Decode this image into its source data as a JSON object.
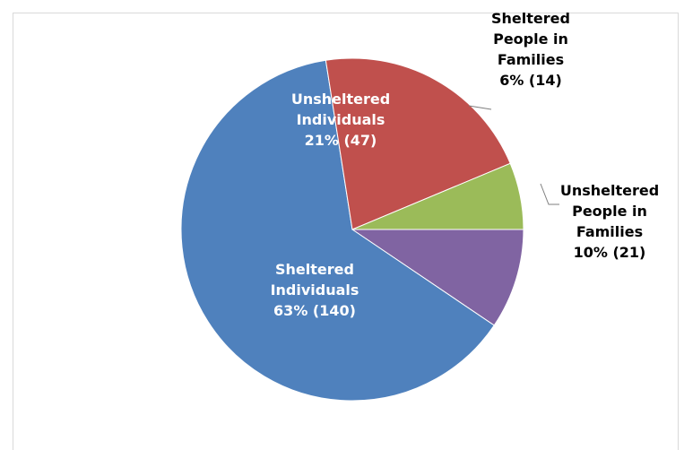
{
  "chart_data": {
    "type": "pie",
    "slices": [
      {
        "label_lines": [
          "Unsheltered",
          "People in",
          "Families"
        ],
        "value_label": "10% (21)",
        "percent": 10,
        "count": 21,
        "color": "#8064A2",
        "label_color": "#000000"
      },
      {
        "label_lines": [
          "Sheltered",
          "Individuals"
        ],
        "value_label": "63% (140)",
        "percent": 63,
        "count": 140,
        "color": "#4F81BD",
        "label_color": "#ffffff"
      },
      {
        "label_lines": [
          "Unsheltered",
          "Individuals"
        ],
        "value_label": "21% (47)",
        "percent": 21,
        "count": 47,
        "color": "#C0504D",
        "label_color": "#ffffff"
      },
      {
        "label_lines": [
          "Sheltered",
          "People in",
          "Families"
        ],
        "value_label": "6% (14)",
        "percent": 6,
        "count": 14,
        "color": "#9BBB59",
        "label_color": "#000000"
      }
    ],
    "start": "3 o'clock",
    "direction": "clockwise",
    "legend": "none",
    "border_color": "#d9d9d9"
  }
}
